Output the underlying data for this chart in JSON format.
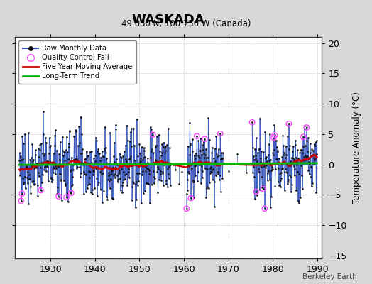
{
  "title": "WASKADA",
  "subtitle": "49.030 N, 100.750 W (Canada)",
  "ylabel": "Temperature Anomaly (°C)",
  "watermark": "Berkeley Earth",
  "xlim": [
    1922,
    1991
  ],
  "ylim": [
    -15.5,
    21
  ],
  "yticks": [
    -15,
    -10,
    -5,
    0,
    5,
    10,
    15,
    20
  ],
  "xticks": [
    1930,
    1940,
    1950,
    1960,
    1970,
    1980,
    1990
  ],
  "bg_color": "#d8d8d8",
  "plot_bg_color": "#ffffff",
  "raw_color": "#3355bb",
  "dot_color": "#111111",
  "ma_color": "#cc0000",
  "trend_color": "#00bb00",
  "qc_color": "#ff44ff",
  "trend_slope": 0.004,
  "trend_intercept": 0.05,
  "seed": 77
}
